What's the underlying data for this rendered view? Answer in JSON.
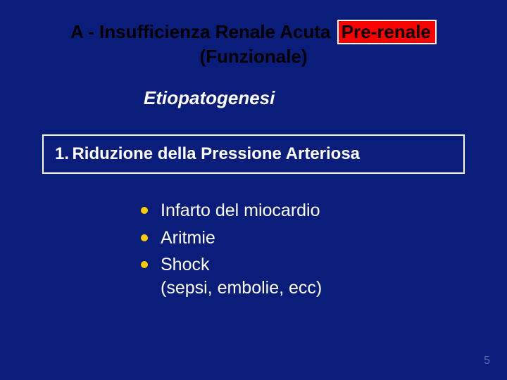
{
  "colors": {
    "background": "#0a1d7a",
    "text_black": "#000000",
    "text_white": "#ffffff",
    "highlight_bg": "#ff0000",
    "highlight_border": "#ffffff",
    "bullet_fill": "#ffcc00",
    "pagenum": "#5a6bb0"
  },
  "title": {
    "prefix": "A - Insufficienza Renale Acuta",
    "highlighted": "Pre-renale",
    "line2": "(Funzionale)"
  },
  "subtitle": "Etiopatogenesi",
  "section": {
    "number": "1.",
    "text": "Riduzione della Pressione Arteriosa"
  },
  "bullets": [
    {
      "text": "Infarto del miocardio"
    },
    {
      "text": "Aritmie"
    },
    {
      "text": "Shock\n(sepsi, embolie, ecc)"
    }
  ],
  "page_number": "5"
}
